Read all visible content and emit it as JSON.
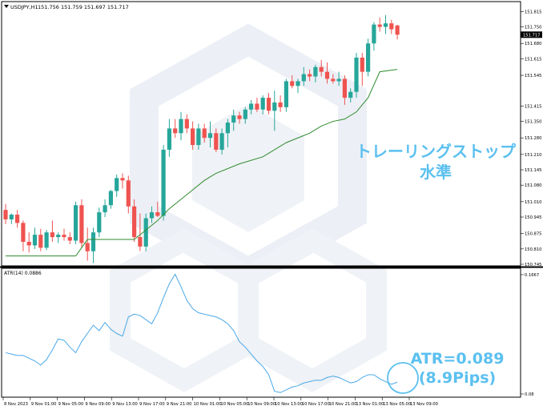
{
  "main_panel": {
    "header": {
      "symbol": "USDJPY,H1",
      "ohlc": "151.756 151.759 151.697 151.717"
    },
    "price_labels": [
      "151.815",
      "151.750",
      "151.680",
      "151.615",
      "151.545",
      "151.415",
      "151.350",
      "151.280",
      "151.210",
      "151.145",
      "151.080",
      "151.010",
      "150.945",
      "150.875",
      "150.810",
      "150.745"
    ],
    "current_price": "151.717",
    "colors": {
      "bull": "#26a69a",
      "bear": "#ef5350",
      "stop_line": "#2e8b2e",
      "grid": "#000000"
    }
  },
  "atr_panel": {
    "header": "ATR(14) 0.0886",
    "scale_top": "0.1667",
    "scale_bottom": "0.08",
    "line_color": "#4aa8e8"
  },
  "time_axis": {
    "labels": [
      "8 Nov 2023",
      "9 Nov 01:00",
      "9 Nov 05:00",
      "9 Nov 09:00",
      "9 Nov 13:00",
      "9 Nov 17:00",
      "9 Nov 21:00",
      "10 Nov 01:00",
      "10 Nov 05:00",
      "10 Nov 09:00",
      "10 Nov 13:00",
      "10 Nov 17:00",
      "10 Nov 21:00",
      "13 Nov 01:00",
      "13 Nov 05:00",
      "13 Nov 09:00"
    ]
  },
  "annotations": {
    "trailing_stop_line1": "トレーリングストップ",
    "trailing_stop_line2": "水準",
    "atr_line1": "ATR=0.089",
    "atr_line2": "(8.9Pips)",
    "color": "#5bc0f0"
  },
  "chart_data": {
    "type": "candlestick",
    "timeframe": "H1",
    "candles": [
      {
        "o": 150.975,
        "h": 151.0,
        "l": 150.915,
        "c": 150.935
      },
      {
        "o": 150.935,
        "h": 150.96,
        "l": 150.915,
        "c": 150.955
      },
      {
        "o": 150.955,
        "h": 150.975,
        "l": 150.9,
        "c": 150.92
      },
      {
        "o": 150.92,
        "h": 150.93,
        "l": 150.8,
        "c": 150.84
      },
      {
        "o": 150.84,
        "h": 150.88,
        "l": 150.795,
        "c": 150.825
      },
      {
        "o": 150.825,
        "h": 150.9,
        "l": 150.81,
        "c": 150.87
      },
      {
        "o": 150.87,
        "h": 150.895,
        "l": 150.8,
        "c": 150.815
      },
      {
        "o": 150.815,
        "h": 150.89,
        "l": 150.805,
        "c": 150.88
      },
      {
        "o": 150.88,
        "h": 150.93,
        "l": 150.84,
        "c": 150.86
      },
      {
        "o": 150.86,
        "h": 150.88,
        "l": 150.835,
        "c": 150.87
      },
      {
        "o": 150.87,
        "h": 150.895,
        "l": 150.845,
        "c": 150.86
      },
      {
        "o": 150.86,
        "h": 150.88,
        "l": 150.83,
        "c": 150.845
      },
      {
        "o": 150.845,
        "h": 151.01,
        "l": 150.83,
        "c": 150.995
      },
      {
        "o": 150.995,
        "h": 151.02,
        "l": 150.815,
        "c": 150.835
      },
      {
        "o": 150.835,
        "h": 150.9,
        "l": 150.76,
        "c": 150.8
      },
      {
        "o": 150.8,
        "h": 150.9,
        "l": 150.75,
        "c": 150.88
      },
      {
        "o": 150.88,
        "h": 150.985,
        "l": 150.86,
        "c": 150.965
      },
      {
        "o": 150.965,
        "h": 151.02,
        "l": 150.945,
        "c": 150.995
      },
      {
        "o": 150.995,
        "h": 151.06,
        "l": 150.98,
        "c": 151.055
      },
      {
        "o": 151.055,
        "h": 151.125,
        "l": 151.03,
        "c": 151.11
      },
      {
        "o": 151.11,
        "h": 151.13,
        "l": 151.065,
        "c": 151.1
      },
      {
        "o": 151.1,
        "h": 151.12,
        "l": 150.96,
        "c": 150.99
      },
      {
        "o": 150.99,
        "h": 151.02,
        "l": 150.84,
        "c": 150.86
      },
      {
        "o": 150.86,
        "h": 150.96,
        "l": 150.8,
        "c": 150.82
      },
      {
        "o": 150.82,
        "h": 150.96,
        "l": 150.8,
        "c": 150.94
      },
      {
        "o": 150.94,
        "h": 150.99,
        "l": 150.92,
        "c": 150.965
      },
      {
        "o": 150.965,
        "h": 151.01,
        "l": 150.945,
        "c": 150.95
      },
      {
        "o": 150.95,
        "h": 151.25,
        "l": 150.93,
        "c": 151.23
      },
      {
        "o": 151.23,
        "h": 151.36,
        "l": 151.2,
        "c": 151.32
      },
      {
        "o": 151.32,
        "h": 151.36,
        "l": 151.28,
        "c": 151.3
      },
      {
        "o": 151.3,
        "h": 151.39,
        "l": 151.27,
        "c": 151.36
      },
      {
        "o": 151.36,
        "h": 151.38,
        "l": 151.3,
        "c": 151.32
      },
      {
        "o": 151.32,
        "h": 151.35,
        "l": 151.23,
        "c": 151.25
      },
      {
        "o": 151.25,
        "h": 151.34,
        "l": 151.23,
        "c": 151.32
      },
      {
        "o": 151.32,
        "h": 151.34,
        "l": 151.26,
        "c": 151.28
      },
      {
        "o": 151.28,
        "h": 151.35,
        "l": 151.24,
        "c": 151.3
      },
      {
        "o": 151.3,
        "h": 151.32,
        "l": 151.22,
        "c": 151.23
      },
      {
        "o": 151.23,
        "h": 151.32,
        "l": 151.21,
        "c": 151.3
      },
      {
        "o": 151.3,
        "h": 151.36,
        "l": 151.24,
        "c": 151.345
      },
      {
        "o": 151.345,
        "h": 151.4,
        "l": 151.31,
        "c": 151.375
      },
      {
        "o": 151.375,
        "h": 151.39,
        "l": 151.34,
        "c": 151.36
      },
      {
        "o": 151.36,
        "h": 151.41,
        "l": 151.34,
        "c": 151.4
      },
      {
        "o": 151.4,
        "h": 151.44,
        "l": 151.38,
        "c": 151.425
      },
      {
        "o": 151.425,
        "h": 151.45,
        "l": 151.39,
        "c": 151.4
      },
      {
        "o": 151.4,
        "h": 151.46,
        "l": 151.38,
        "c": 151.45
      },
      {
        "o": 151.45,
        "h": 151.47,
        "l": 151.38,
        "c": 151.395
      },
      {
        "o": 151.395,
        "h": 151.48,
        "l": 151.31,
        "c": 151.43
      },
      {
        "o": 151.43,
        "h": 151.46,
        "l": 151.39,
        "c": 151.41
      },
      {
        "o": 151.41,
        "h": 151.53,
        "l": 151.39,
        "c": 151.52
      },
      {
        "o": 151.52,
        "h": 151.545,
        "l": 151.49,
        "c": 151.5
      },
      {
        "o": 151.5,
        "h": 151.53,
        "l": 151.47,
        "c": 151.52
      },
      {
        "o": 151.52,
        "h": 151.58,
        "l": 151.5,
        "c": 151.55
      },
      {
        "o": 151.55,
        "h": 151.57,
        "l": 151.52,
        "c": 151.54
      },
      {
        "o": 151.54,
        "h": 151.59,
        "l": 151.515,
        "c": 151.58
      },
      {
        "o": 151.58,
        "h": 151.61,
        "l": 151.54,
        "c": 151.56
      },
      {
        "o": 151.56,
        "h": 151.6,
        "l": 151.51,
        "c": 151.53
      },
      {
        "o": 151.53,
        "h": 151.55,
        "l": 151.51,
        "c": 151.52
      },
      {
        "o": 151.52,
        "h": 151.56,
        "l": 151.5,
        "c": 151.53
      },
      {
        "o": 151.53,
        "h": 151.545,
        "l": 151.42,
        "c": 151.45
      },
      {
        "o": 151.45,
        "h": 151.49,
        "l": 151.43,
        "c": 151.475
      },
      {
        "o": 151.475,
        "h": 151.64,
        "l": 151.45,
        "c": 151.62
      },
      {
        "o": 151.62,
        "h": 151.64,
        "l": 151.5,
        "c": 151.56
      },
      {
        "o": 151.56,
        "h": 151.7,
        "l": 151.54,
        "c": 151.68
      },
      {
        "o": 151.68,
        "h": 151.77,
        "l": 151.65,
        "c": 151.76
      },
      {
        "o": 151.76,
        "h": 151.79,
        "l": 151.73,
        "c": 151.75
      },
      {
        "o": 151.75,
        "h": 151.8,
        "l": 151.72,
        "c": 151.765
      },
      {
        "o": 151.765,
        "h": 151.78,
        "l": 151.72,
        "c": 151.74
      },
      {
        "o": 151.756,
        "h": 151.759,
        "l": 151.697,
        "c": 151.717
      }
    ],
    "trailing_stop": [
      [
        0,
        150.78
      ],
      [
        10,
        150.78
      ],
      [
        12,
        150.78
      ],
      [
        14,
        150.85
      ],
      [
        22,
        150.85
      ],
      [
        24,
        150.89
      ],
      [
        26,
        150.93
      ],
      [
        28,
        150.98
      ],
      [
        30,
        151.02
      ],
      [
        32,
        151.06
      ],
      [
        34,
        151.1
      ],
      [
        36,
        151.13
      ],
      [
        40,
        151.17
      ],
      [
        44,
        151.2
      ],
      [
        48,
        151.26
      ],
      [
        52,
        151.3
      ],
      [
        54,
        151.33
      ],
      [
        56,
        151.35
      ],
      [
        58,
        151.36
      ],
      [
        60,
        151.39
      ],
      [
        62,
        151.45
      ],
      [
        64,
        151.56
      ],
      [
        67,
        151.57
      ]
    ],
    "atr": [
      0.11,
      0.109,
      0.108,
      0.108,
      0.106,
      0.104,
      0.101,
      0.105,
      0.112,
      0.12,
      0.119,
      0.114,
      0.11,
      0.118,
      0.124,
      0.13,
      0.126,
      0.132,
      0.127,
      0.124,
      0.122,
      0.136,
      0.138,
      0.137,
      0.134,
      0.131,
      0.139,
      0.15,
      0.16,
      0.167,
      0.158,
      0.148,
      0.142,
      0.139,
      0.138,
      0.137,
      0.136,
      0.134,
      0.131,
      0.126,
      0.118,
      0.114,
      0.109,
      0.104,
      0.1,
      0.094,
      0.082,
      0.081,
      0.083,
      0.085,
      0.086,
      0.088,
      0.089,
      0.09,
      0.09,
      0.092,
      0.093,
      0.092,
      0.09,
      0.088,
      0.089,
      0.092,
      0.094,
      0.094,
      0.091,
      0.089,
      0.087,
      0.0886
    ],
    "price_range": [
      150.745,
      151.83
    ],
    "atr_range": [
      0.08,
      0.1667
    ],
    "annotations": [
      "トレーリングストップ 水準",
      "ATR=0.089 (8.9Pips)"
    ]
  }
}
